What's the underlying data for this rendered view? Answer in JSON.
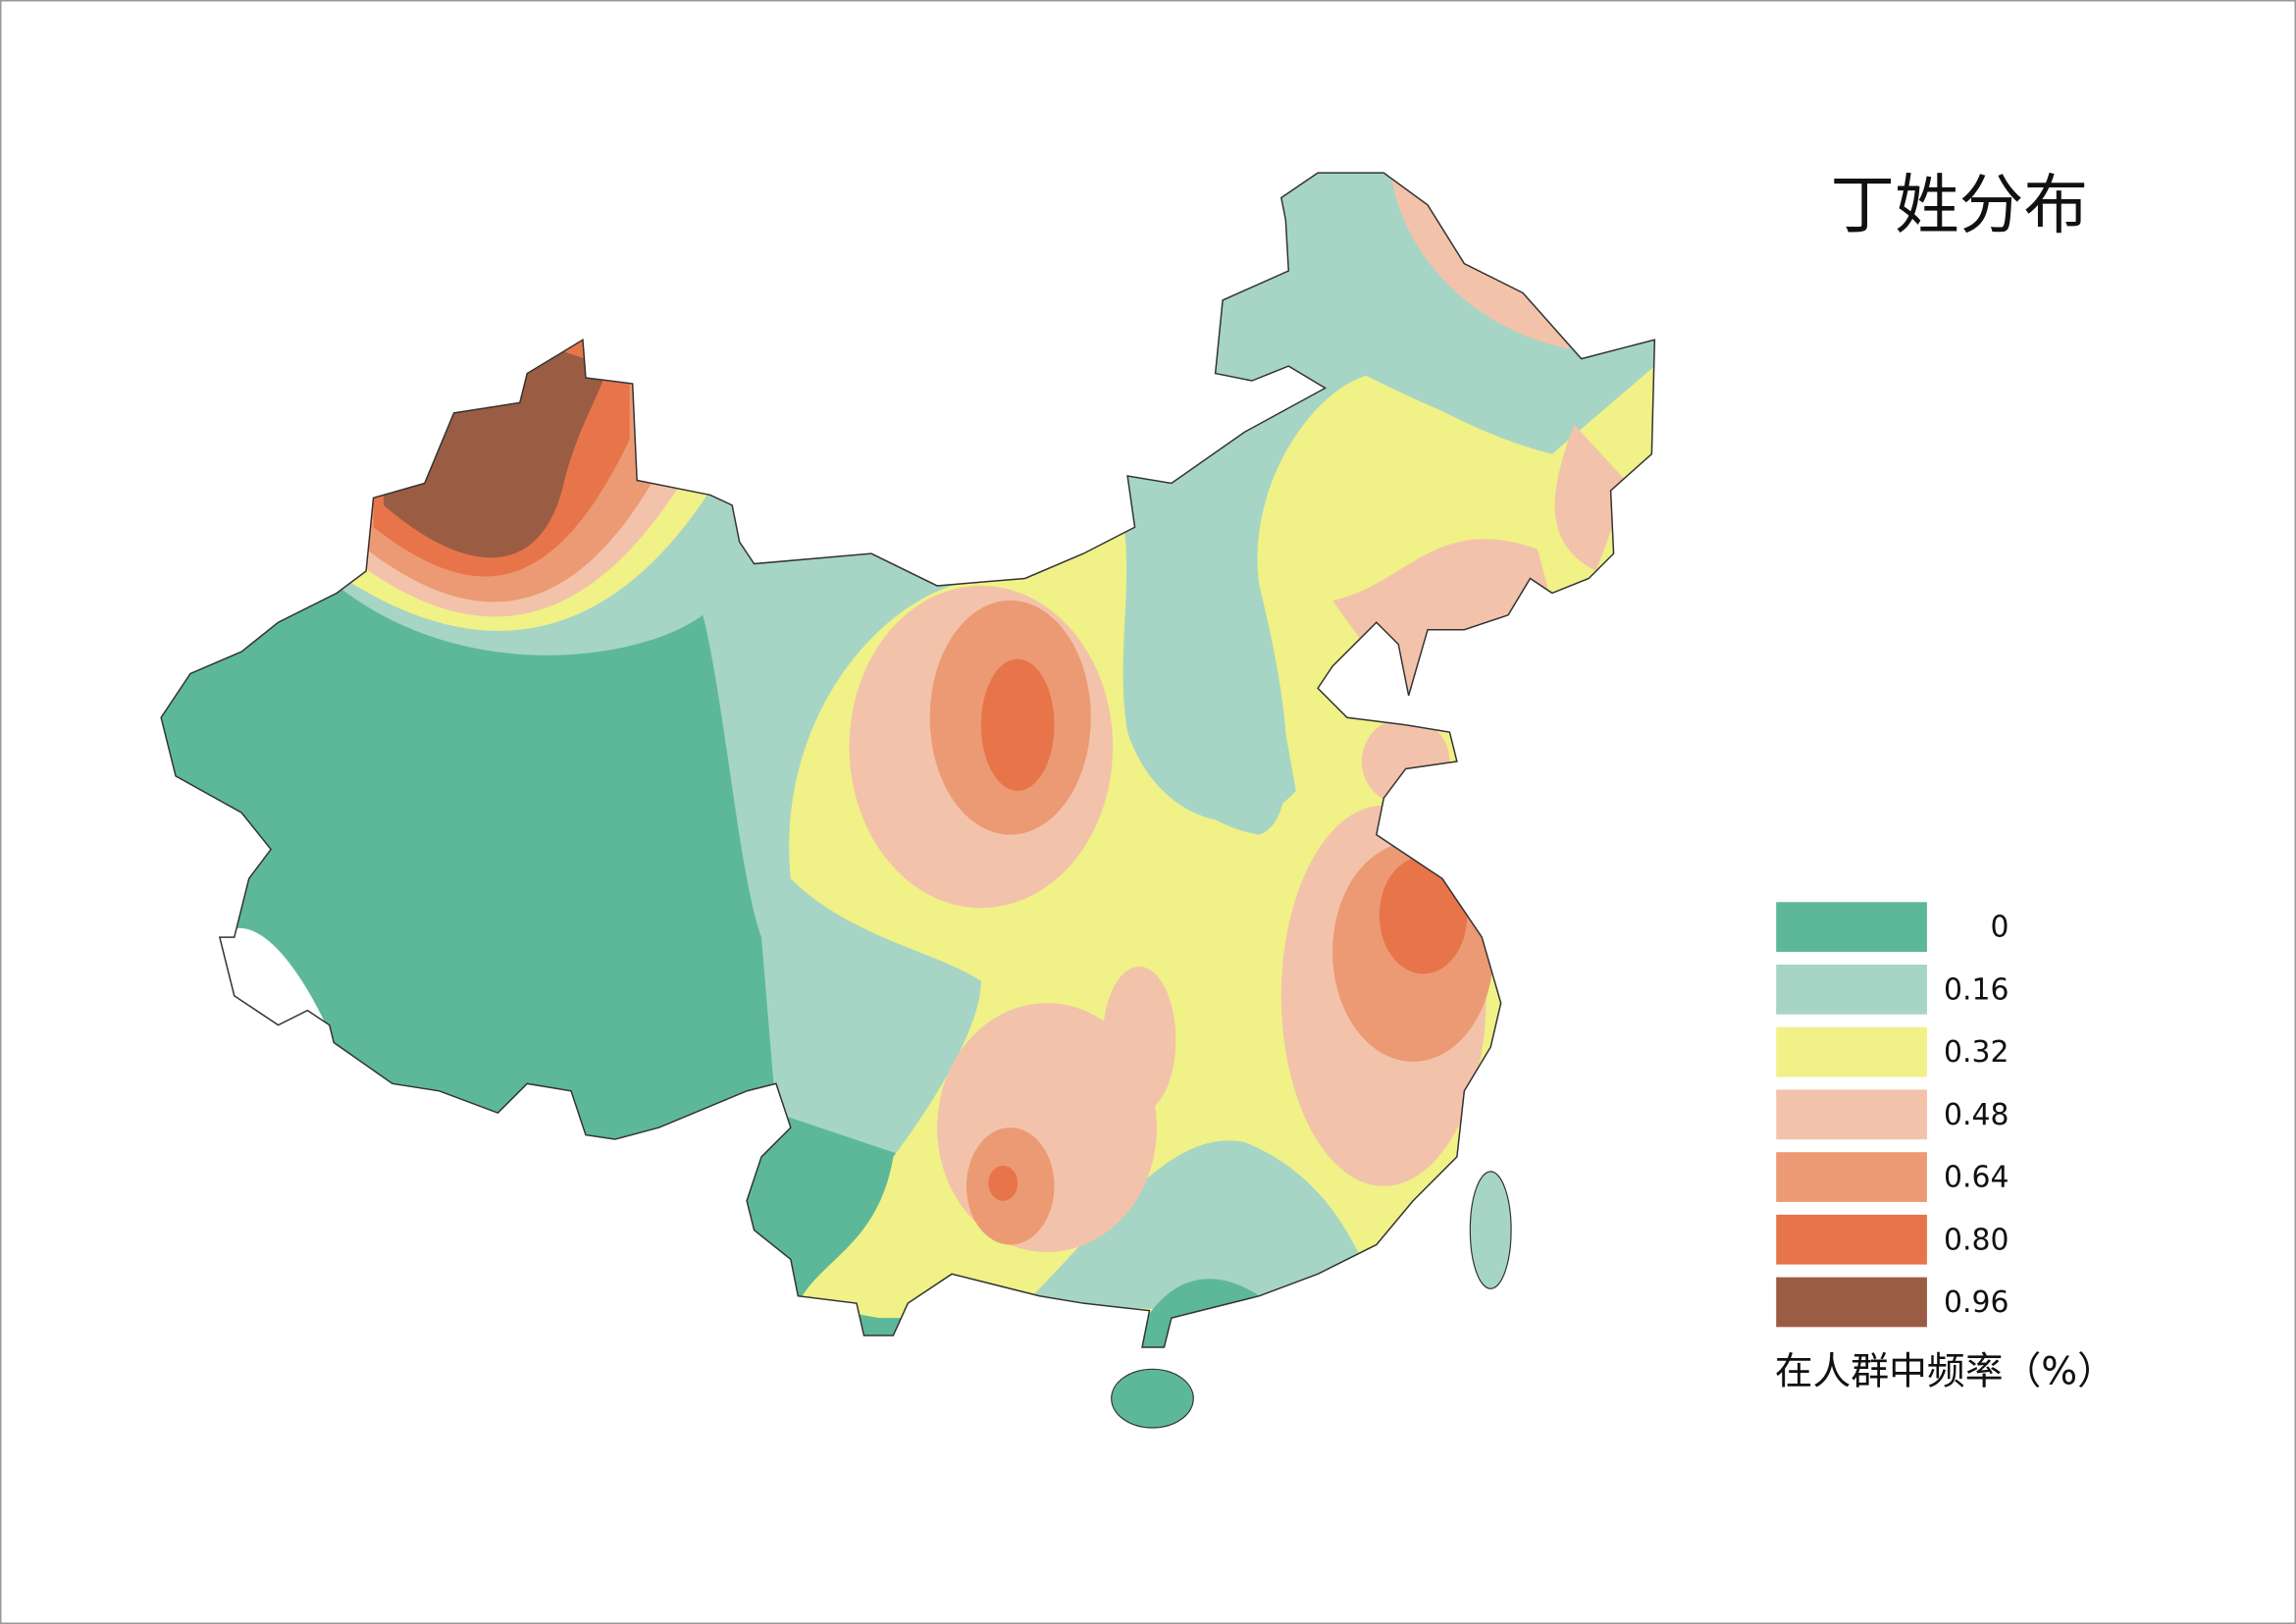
{
  "title": "丁姓分布",
  "legend": {
    "items": [
      {
        "label": "0",
        "color": "#5db89a"
      },
      {
        "label": "0.16",
        "color": "#a6d5c5"
      },
      {
        "label": "0.32",
        "color": "#f0f187"
      },
      {
        "label": "0.48",
        "color": "#f2c3aa"
      },
      {
        "label": "0.64",
        "color": "#ec9a74"
      },
      {
        "label": "0.80",
        "color": "#e8744a"
      },
      {
        "label": "0.96",
        "color": "#9b5c44"
      }
    ],
    "caption": "在人群中频率（%）"
  }
}
